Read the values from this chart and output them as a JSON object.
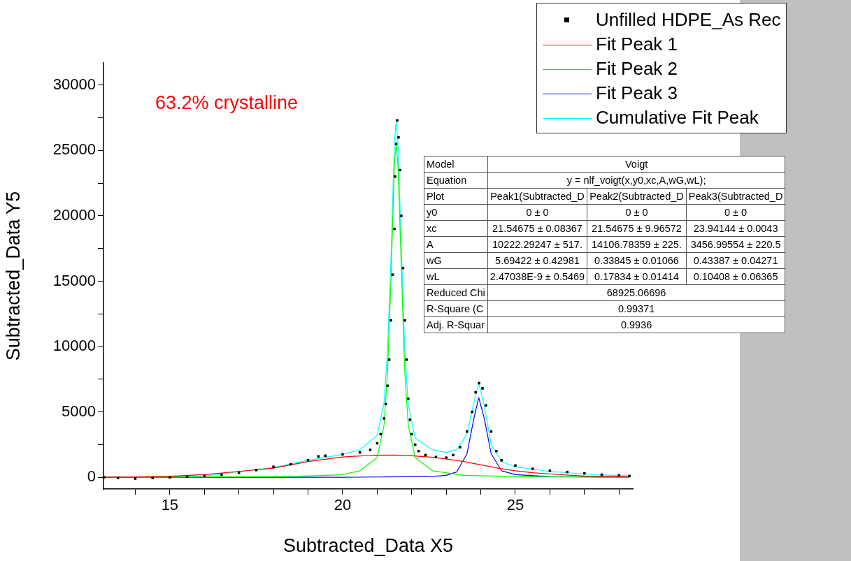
{
  "chart_data": {
    "type": "scatter",
    "xlabel": "Subtracted_Data X5",
    "ylabel": "Subtracted_Data Y5",
    "xlim": [
      13.08,
      28.4
    ],
    "ylim": [
      -900,
      31700
    ],
    "xticks": [
      {
        "value": 14,
        "label": null
      },
      15,
      {
        "value": 16,
        "label": null
      },
      {
        "value": 17,
        "label": null
      },
      {
        "value": 18,
        "label": null
      },
      {
        "value": 19,
        "label": null
      },
      20,
      {
        "value": 21,
        "label": null
      },
      {
        "value": 22,
        "label": null
      },
      {
        "value": 23,
        "label": null
      },
      {
        "value": 24,
        "label": null
      },
      25,
      {
        "value": 26,
        "label": null
      },
      {
        "value": 27,
        "label": null
      },
      {
        "value": 28,
        "label": null
      }
    ],
    "yticks": [
      0,
      {
        "value": 2500,
        "label": null
      },
      5000,
      {
        "value": 7500,
        "label": null
      },
      10000,
      {
        "value": 12500,
        "label": null
      },
      15000,
      {
        "value": 17500,
        "label": null
      },
      20000,
      {
        "value": 22500,
        "label": null
      },
      25000,
      {
        "value": 27500,
        "label": null
      },
      30000
    ],
    "grid": false,
    "legend": "top right",
    "series": [
      {
        "name": "Unfilled HDPE_As Rec",
        "type": "scatter",
        "marker": "square",
        "color": "#000000",
        "x": [
          13.1,
          13.5,
          14,
          14.5,
          15,
          15.5,
          16,
          16.5,
          17,
          17.5,
          18,
          18.5,
          19,
          19.3,
          19.5,
          20,
          20.5,
          20.8,
          21,
          21.1,
          21.2,
          21.25,
          21.3,
          21.35,
          21.4,
          21.45,
          21.5,
          21.52,
          21.55,
          21.58,
          21.62,
          21.66,
          21.7,
          21.75,
          21.8,
          21.85,
          21.9,
          21.95,
          22,
          22.1,
          22.2,
          22.4,
          22.7,
          23,
          23.2,
          23.4,
          23.6,
          23.75,
          23.85,
          23.95,
          24.05,
          24.15,
          24.3,
          24.45,
          24.6,
          25,
          25.5,
          26,
          26.5,
          27,
          27.5,
          28,
          28.3
        ],
        "values": [
          0,
          -50,
          -100,
          -50,
          0,
          50,
          100,
          200,
          350,
          550,
          800,
          1000,
          1300,
          1600,
          1650,
          1750,
          1900,
          2100,
          2600,
          3300,
          4500,
          5600,
          7000,
          9000,
          12000,
          15500,
          19000,
          23000,
          25500,
          27300,
          26000,
          23500,
          20000,
          16000,
          12000,
          9000,
          6000,
          4400,
          3300,
          2500,
          2000,
          1700,
          1550,
          1500,
          1700,
          2300,
          3500,
          5000,
          6500,
          7200,
          6800,
          5500,
          3500,
          2000,
          1300,
          900,
          650,
          500,
          400,
          300,
          200,
          150,
          100
        ]
      },
      {
        "name": "Fit Peak 1",
        "type": "line",
        "marker": "none",
        "color": "#ff0000",
        "x": [
          13.1,
          14,
          15,
          16,
          17,
          18,
          19,
          20,
          20.8,
          21.5,
          22,
          22.5,
          23,
          23.5,
          24,
          24.5,
          25,
          25.5,
          26,
          27,
          28.3
        ],
        "values": [
          0,
          20,
          80,
          200,
          450,
          700,
          1200,
          1550,
          1680,
          1700,
          1650,
          1550,
          1400,
          1200,
          950,
          700,
          500,
          350,
          250,
          100,
          50
        ]
      },
      {
        "name": "Fit Peak 2",
        "type": "line",
        "marker": "none",
        "color": "#00ff00",
        "x": [
          13.1,
          18,
          19,
          20,
          20.5,
          21,
          21.2,
          21.3,
          21.4,
          21.5,
          21.55,
          21.6,
          21.7,
          21.8,
          21.9,
          22.1,
          22.6,
          23.5,
          25,
          28.3
        ],
        "values": [
          0,
          50,
          100,
          200,
          500,
          1500,
          4000,
          8000,
          15000,
          24000,
          25500,
          24000,
          16000,
          8000,
          4000,
          1500,
          500,
          150,
          50,
          0
        ]
      },
      {
        "name": "Fit Peak 3",
        "type": "line",
        "marker": "none",
        "color": "#0000ff",
        "x": [
          13.1,
          20,
          22.5,
          23,
          23.3,
          23.6,
          23.8,
          23.94,
          24.1,
          24.3,
          24.6,
          25,
          26,
          28.3
        ],
        "values": [
          0,
          0,
          50,
          150,
          400,
          1800,
          4500,
          6100,
          4500,
          1800,
          500,
          200,
          50,
          0
        ]
      },
      {
        "name": "Cumulative Fit Peak",
        "type": "line",
        "marker": "none",
        "color": "#00ffff",
        "x": [
          13.1,
          16,
          18,
          19,
          20,
          20.5,
          21,
          21.2,
          21.3,
          21.4,
          21.5,
          21.55,
          21.6,
          21.7,
          21.8,
          21.9,
          22.1,
          22.6,
          23,
          23.3,
          23.6,
          23.8,
          23.94,
          24.1,
          24.3,
          24.6,
          25,
          26,
          27,
          28.3
        ],
        "values": [
          0,
          100,
          750,
          1300,
          1750,
          2100,
          3200,
          5700,
          9700,
          16700,
          25700,
          27200,
          25700,
          17700,
          9700,
          5600,
          3000,
          2100,
          1900,
          2100,
          3300,
          5700,
          7200,
          5500,
          2500,
          1200,
          800,
          450,
          250,
          100
        ]
      }
    ],
    "annotations": [
      "63.2% crystalline",
      "Model",
      "Voigt",
      "Equation",
      "y = nlf_voigt(x,y0,xc,A,wG,wL);",
      "Plot",
      "Peak1(Subtracted_D",
      "Peak2(Subtracted_D",
      "Peak3(Subtracted_D",
      "y0",
      "0 ± 0",
      "0 ± 0",
      "0 ± 0",
      "xc",
      "21.54675 ± 0.08367",
      "21.54675 ± 9.96572",
      "23.94144 ± 0.0043",
      "A",
      "10222.29247 ± 517.",
      "14106.78359 ± 225.",
      "3456.99554 ± 220.5",
      "wG",
      "5.69422 ± 0.42981",
      "0.33845 ± 0.01066",
      "0.43387 ± 0.04271",
      "wL",
      "2.47038E-9 ± 0.5469",
      "0.17834 ± 0.01414",
      "0.10408 ± 0.06365",
      "Reduced Chi",
      "68925.06696",
      "R-Square (C",
      "0.99371",
      "Adj. R-Squar",
      "0.9936"
    ]
  }
}
